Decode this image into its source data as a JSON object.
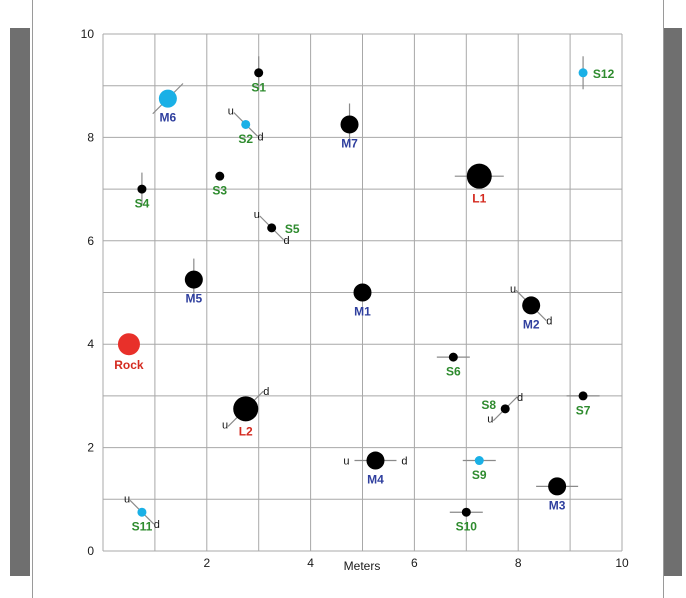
{
  "figure": {
    "x_axis_label": "Meters",
    "x_ticks": [
      "2",
      "4",
      "6",
      "8",
      "10"
    ],
    "y_ticks": [
      "0",
      "2",
      "4",
      "6",
      "8",
      "10"
    ],
    "x_range": [
      0,
      10
    ],
    "y_range": [
      0,
      10
    ],
    "grid": true,
    "colors": {
      "small_label": "#2e8b2e",
      "medium_label": "#2f3f9e",
      "large_label": "#d42a1f",
      "rock_label": "#d42a1f",
      "black_marker": "#000000",
      "cyan_marker": "#1ab0e6",
      "rock_marker": "#e8302a"
    }
  },
  "markers": [
    {
      "id": "S1",
      "x": 3.0,
      "y": 9.25,
      "size": "small",
      "color": "black",
      "tick": "v"
    },
    {
      "id": "M6",
      "x": 1.25,
      "y": 8.75,
      "size": "medium",
      "color": "cyan",
      "tick": "diag_ne"
    },
    {
      "id": "S2",
      "x": 2.75,
      "y": 8.25,
      "size": "small",
      "color": "cyan",
      "tick": "diag_nw",
      "u": "u",
      "d": "d"
    },
    {
      "id": "M7",
      "x": 4.75,
      "y": 8.25,
      "size": "medium",
      "color": "black",
      "tick": "v"
    },
    {
      "id": "S12",
      "x": 9.25,
      "y": 9.25,
      "size": "small",
      "color": "cyan",
      "tick": "v"
    },
    {
      "id": "S3",
      "x": 2.25,
      "y": 7.25,
      "size": "small",
      "color": "black"
    },
    {
      "id": "L1",
      "x": 7.25,
      "y": 7.25,
      "size": "large",
      "color": "black",
      "tick": "h"
    },
    {
      "id": "S4",
      "x": 0.75,
      "y": 7.0,
      "size": "small",
      "color": "black",
      "tick": "v"
    },
    {
      "id": "S5",
      "x": 3.25,
      "y": 6.25,
      "size": "small",
      "color": "black",
      "tick": "diag_nw",
      "u": "u",
      "d": "d"
    },
    {
      "id": "M5",
      "x": 1.75,
      "y": 5.25,
      "size": "medium",
      "color": "black",
      "tick": "v"
    },
    {
      "id": "M1",
      "x": 5.0,
      "y": 5.0,
      "size": "medium",
      "color": "black"
    },
    {
      "id": "M2",
      "x": 8.25,
      "y": 4.75,
      "size": "medium",
      "color": "black",
      "tick": "diag_nw",
      "u": "u",
      "d": "d"
    },
    {
      "id": "Rock",
      "x": 0.5,
      "y": 4.0,
      "size": "rock",
      "color": "red"
    },
    {
      "id": "S6",
      "x": 6.75,
      "y": 3.75,
      "size": "small",
      "color": "black",
      "tick": "h"
    },
    {
      "id": "L2",
      "x": 2.75,
      "y": 2.75,
      "size": "large",
      "color": "black",
      "tick": "diag_ne",
      "u": "u",
      "d": "d"
    },
    {
      "id": "S8",
      "x": 7.75,
      "y": 2.75,
      "size": "small",
      "color": "black",
      "tick": "diag_ne",
      "u": "u",
      "d": "d"
    },
    {
      "id": "S7",
      "x": 9.25,
      "y": 3.0,
      "size": "small",
      "color": "black",
      "tick": "h"
    },
    {
      "id": "M4",
      "x": 5.25,
      "y": 1.75,
      "size": "medium",
      "color": "black",
      "tick": "h",
      "u": "u",
      "d": "d"
    },
    {
      "id": "S9",
      "x": 7.25,
      "y": 1.75,
      "size": "small",
      "color": "cyan",
      "tick": "h"
    },
    {
      "id": "M3",
      "x": 8.75,
      "y": 1.25,
      "size": "medium",
      "color": "black",
      "tick": "h"
    },
    {
      "id": "S10",
      "x": 7.0,
      "y": 0.75,
      "size": "small",
      "color": "black",
      "tick": "h"
    },
    {
      "id": "S11",
      "x": 0.75,
      "y": 0.75,
      "size": "small",
      "color": "cyan",
      "tick": "diag_nw",
      "u": "u",
      "d": "d"
    }
  ]
}
